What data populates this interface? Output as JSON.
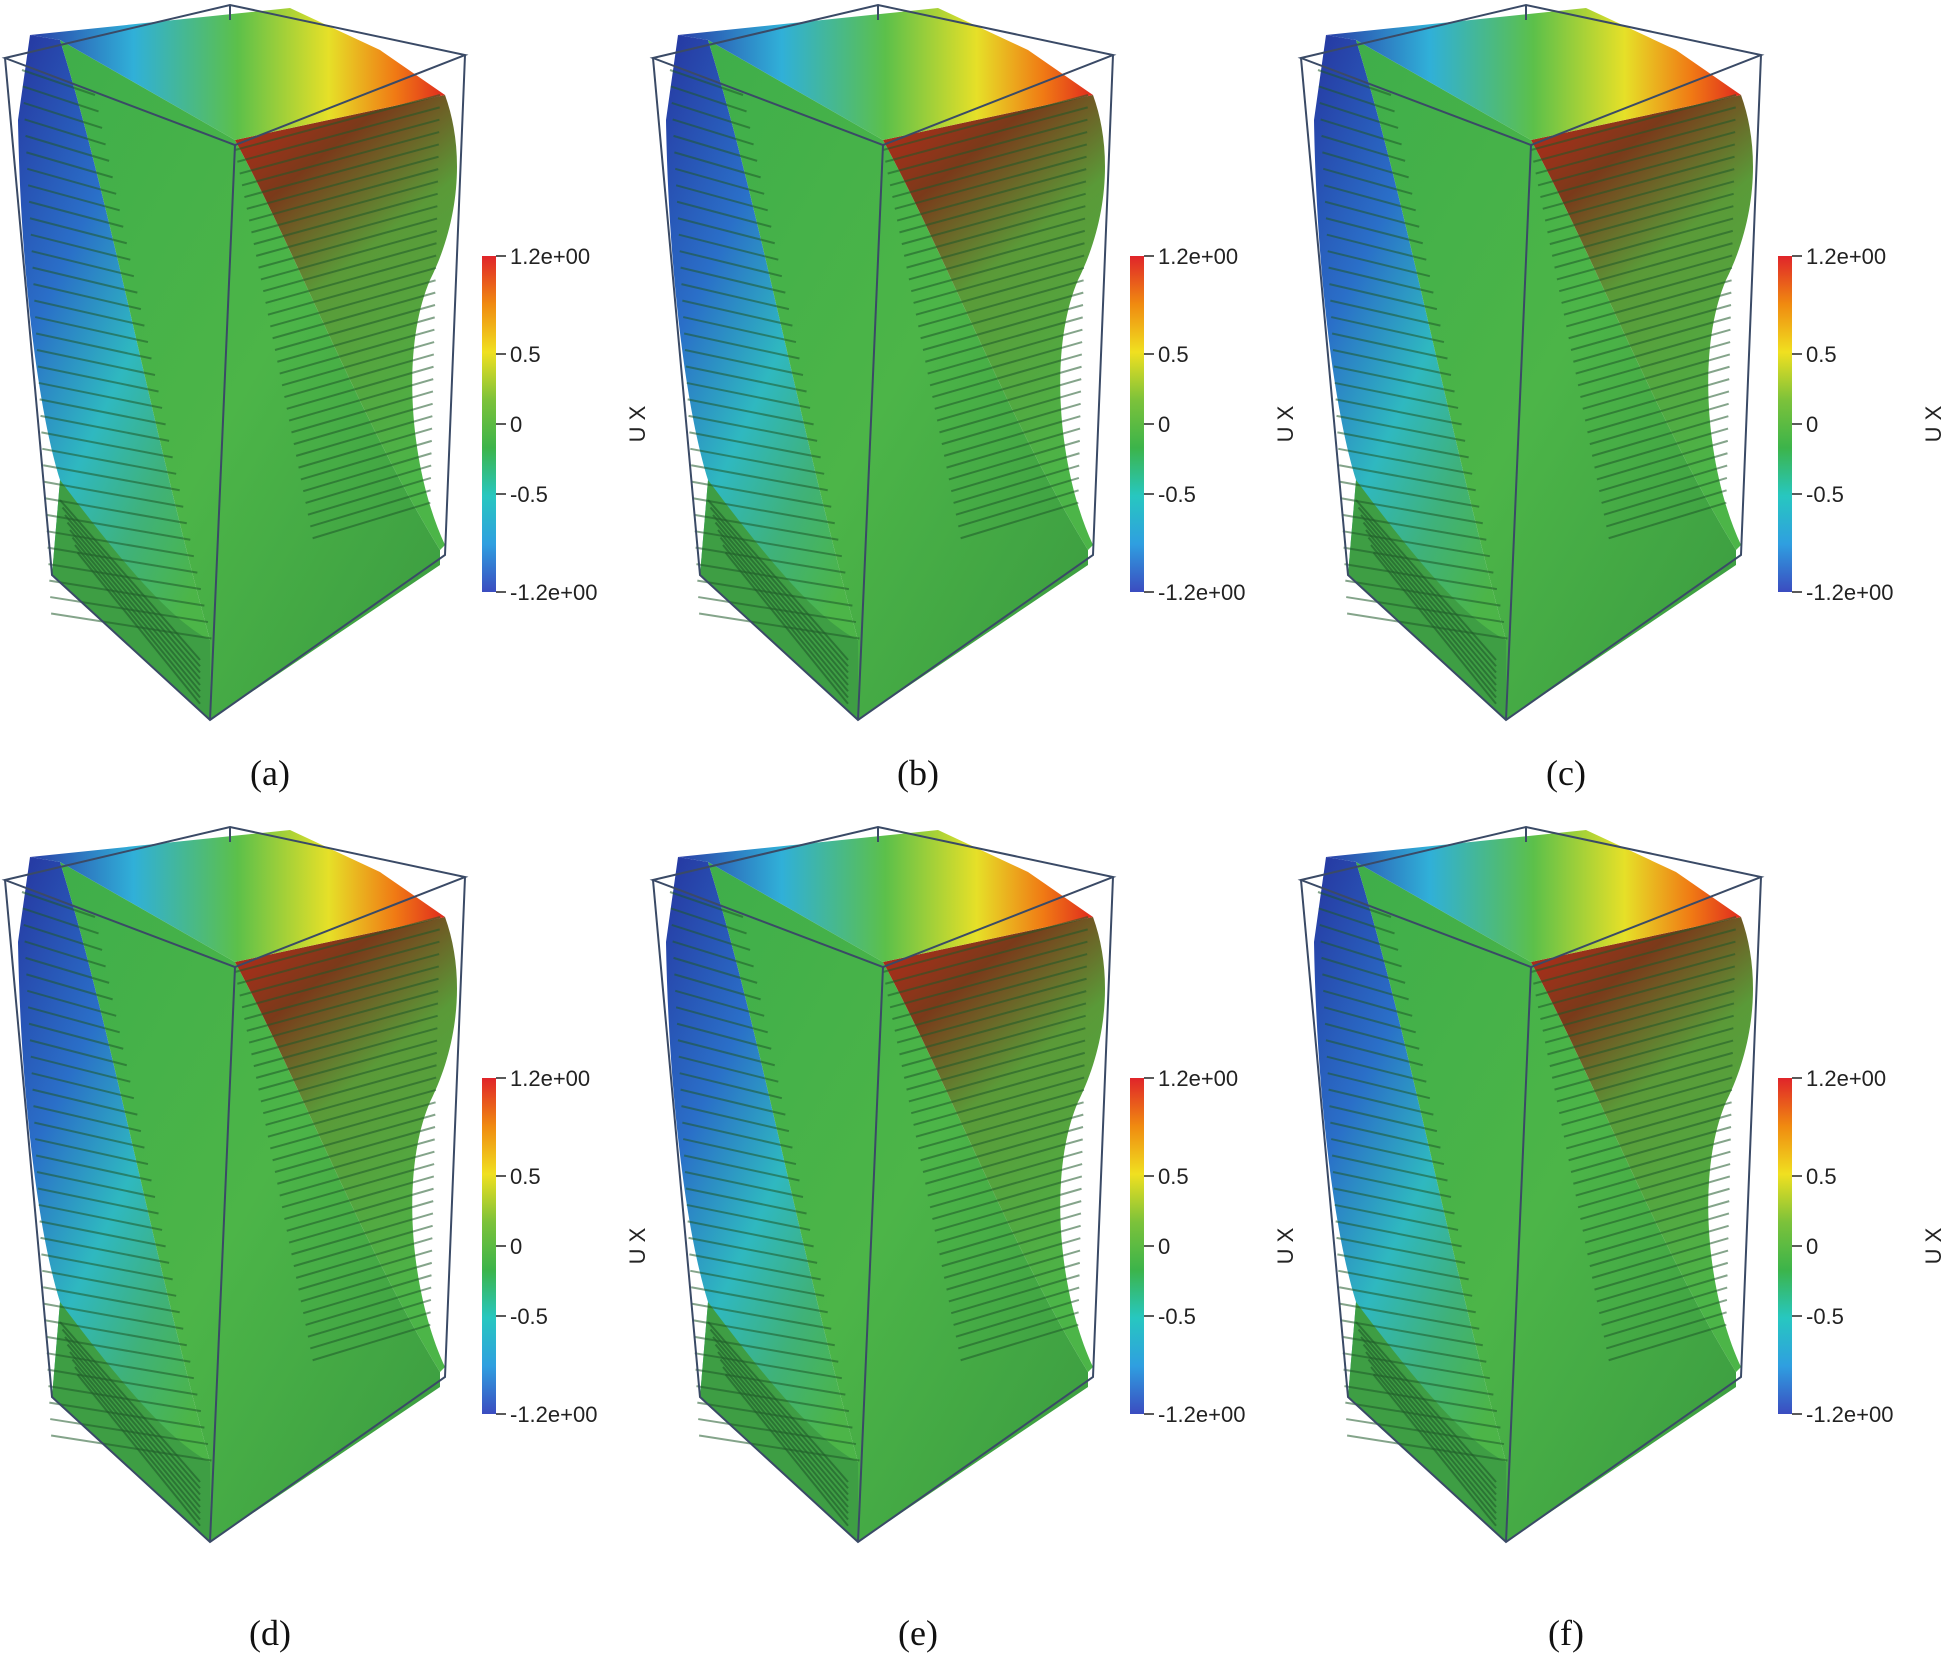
{
  "figure": {
    "panels": [
      {
        "caption": "(a)"
      },
      {
        "caption": "(b)"
      },
      {
        "caption": "(c)"
      },
      {
        "caption": "(d)"
      },
      {
        "caption": "(e)"
      },
      {
        "caption": "(f)"
      }
    ],
    "colorbar": {
      "title": "U X",
      "max_label": "1.2e+00",
      "min_label": "-1.2e+00",
      "ticks": [
        "1.2e+00",
        "0.5",
        "0",
        "-0.5",
        "-1.2e+00"
      ],
      "tick_values": [
        1.2,
        0.5,
        0,
        -0.5,
        -1.2
      ],
      "colormap": [
        "#3b4cc0",
        "#2f9fe0",
        "#27c7c0",
        "#3cb44a",
        "#7cc23a",
        "#f0e020",
        "#f08a10",
        "#e0242a"
      ]
    },
    "colors": {
      "outline_box": "#3a4a66",
      "low": "#2a3fa8",
      "mid": "#4cb548",
      "high": "#e02a1e",
      "dark_green": "#2f7a3a"
    }
  }
}
